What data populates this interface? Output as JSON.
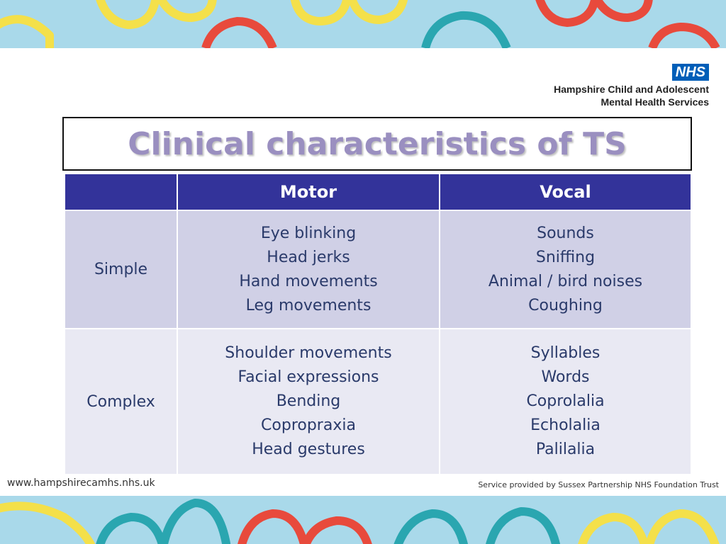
{
  "org": {
    "logo_text": "NHS",
    "name_line1": "Hampshire Child and Adolescent",
    "name_line2": "Mental Health Services"
  },
  "title": "Clinical characteristics of TS",
  "table": {
    "headers": [
      "",
      "Motor",
      "Vocal"
    ],
    "rows": [
      {
        "label": "Simple",
        "motor": [
          "Eye blinking",
          "Head jerks",
          "Hand movements",
          "Leg movements"
        ],
        "vocal": [
          "Sounds",
          "Sniffing",
          "Animal / bird noises",
          "Coughing"
        ]
      },
      {
        "label": "Complex",
        "motor": [
          "Shoulder movements",
          "Facial expressions",
          "Bending",
          "Copropraxia",
          "Head gestures"
        ],
        "vocal": [
          "Syllables",
          "Words",
          "Coprolalia",
          "Echolalia",
          "Palilalia"
        ]
      }
    ]
  },
  "footer": {
    "website": "www.hampshirecamhs.nhs.uk",
    "provider": "Service provided by Sussex Partnership NHS Foundation Trust"
  },
  "colors": {
    "header_bg": "#33339a",
    "title": "#9a8fc0",
    "band_bg": "#a9d9ea",
    "nhs_blue": "#005eb8"
  }
}
